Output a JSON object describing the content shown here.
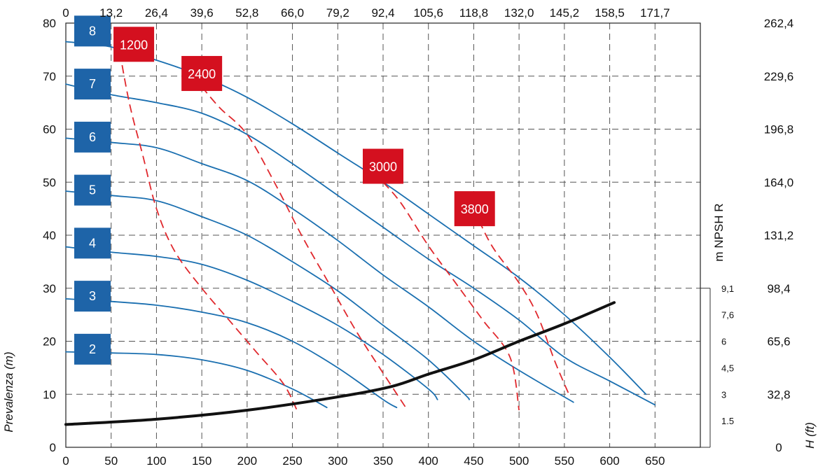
{
  "chart_data": {
    "type": "line",
    "x_bottom": {
      "ticks": [
        "0",
        "50",
        "100",
        "150",
        "200",
        "250",
        "300",
        "350",
        "400",
        "450",
        "500",
        "550",
        "600",
        "650"
      ],
      "range": [
        0,
        700
      ]
    },
    "x_top": {
      "ticks": [
        "0",
        "13,2",
        "26,4",
        "39,6",
        "52,8",
        "66,0",
        "79,2",
        "92,4",
        "105,6",
        "118,8",
        "132,0",
        "145,2",
        "158,5",
        "171,7"
      ]
    },
    "y_left": {
      "label": "Prevalenza (m)",
      "ticks": [
        "0",
        "10",
        "20",
        "30",
        "40",
        "50",
        "60",
        "70",
        "80"
      ],
      "range": [
        0,
        80
      ]
    },
    "y_right_ft": {
      "label": "H (ft)",
      "ticks": [
        "0",
        "32,8",
        "65,6",
        "98,4",
        "131,2",
        "164,0",
        "196,8",
        "229,6",
        "262,4"
      ]
    },
    "y_npsh": {
      "label": "m NPSH R",
      "ticks": [
        {
          "text": "1.5",
          "y": 5
        },
        {
          "text": "3",
          "y": 10
        },
        {
          "text": "4,5",
          "y": 15
        },
        {
          "text": "6",
          "y": 20
        },
        {
          "text": "7,6",
          "y": 25
        },
        {
          "text": "9,1",
          "y": 30
        }
      ]
    },
    "grid": true,
    "series": [
      {
        "name": "2",
        "color": "#1a6fb0",
        "points": [
          [
            0,
            18
          ],
          [
            50,
            17.8
          ],
          [
            100,
            17.5
          ],
          [
            150,
            16.5
          ],
          [
            200,
            14.5
          ],
          [
            250,
            11
          ],
          [
            288,
            7.5
          ]
        ]
      },
      {
        "name": "3",
        "color": "#1a6fb0",
        "points": [
          [
            0,
            28
          ],
          [
            50,
            27.5
          ],
          [
            100,
            26.8
          ],
          [
            150,
            25.5
          ],
          [
            200,
            23.5
          ],
          [
            250,
            20
          ],
          [
            300,
            15
          ],
          [
            350,
            9
          ],
          [
            365,
            7.5
          ]
        ]
      },
      {
        "name": "4",
        "color": "#1a6fb0",
        "points": [
          [
            0,
            37.8
          ],
          [
            50,
            36.8
          ],
          [
            100,
            36
          ],
          [
            150,
            34.5
          ],
          [
            200,
            31.5
          ],
          [
            250,
            27.5
          ],
          [
            300,
            23
          ],
          [
            350,
            17.5
          ],
          [
            400,
            11
          ],
          [
            410,
            9
          ]
        ]
      },
      {
        "name": "5",
        "color": "#1a6fb0",
        "points": [
          [
            0,
            48.3
          ],
          [
            50,
            47.5
          ],
          [
            100,
            46.5
          ],
          [
            150,
            43.5
          ],
          [
            200,
            40
          ],
          [
            250,
            35
          ],
          [
            300,
            29.5
          ],
          [
            350,
            23
          ],
          [
            400,
            16.5
          ],
          [
            440,
            10
          ],
          [
            445,
            9
          ]
        ]
      },
      {
        "name": "6",
        "color": "#1a6fb0",
        "points": [
          [
            0,
            58.3
          ],
          [
            50,
            57.5
          ],
          [
            100,
            56.5
          ],
          [
            150,
            53.5
          ],
          [
            200,
            50.3
          ],
          [
            250,
            45
          ],
          [
            300,
            39
          ],
          [
            350,
            32.5
          ],
          [
            400,
            26.5
          ],
          [
            450,
            20
          ],
          [
            500,
            14.5
          ],
          [
            560,
            8.5
          ]
        ]
      },
      {
        "name": "7",
        "color": "#1a6fb0",
        "points": [
          [
            0,
            68.5
          ],
          [
            50,
            66.5
          ],
          [
            100,
            65
          ],
          [
            150,
            63
          ],
          [
            200,
            59
          ],
          [
            250,
            53.5
          ],
          [
            300,
            47.5
          ],
          [
            350,
            41.5
          ],
          [
            400,
            35.5
          ],
          [
            450,
            30
          ],
          [
            500,
            24
          ],
          [
            550,
            17
          ],
          [
            600,
            12.5
          ],
          [
            650,
            8
          ]
        ]
      },
      {
        "name": "8",
        "color": "#1a6fb0",
        "points": [
          [
            0,
            76.5
          ],
          [
            50,
            75.5
          ],
          [
            100,
            73
          ],
          [
            150,
            70
          ],
          [
            200,
            66
          ],
          [
            250,
            61
          ],
          [
            300,
            55.5
          ],
          [
            350,
            50
          ],
          [
            400,
            44
          ],
          [
            450,
            38
          ],
          [
            500,
            32
          ],
          [
            550,
            25
          ],
          [
            600,
            17
          ],
          [
            640,
            10
          ]
        ]
      },
      {
        "name": "NPSH",
        "color": "#111111",
        "points": [
          [
            0,
            4.3
          ],
          [
            100,
            5.3
          ],
          [
            200,
            7
          ],
          [
            300,
            9.5
          ],
          [
            360,
            11.5
          ],
          [
            400,
            13.8
          ],
          [
            450,
            16.5
          ],
          [
            500,
            20
          ],
          [
            550,
            23.3
          ],
          [
            605,
            27.3
          ]
        ]
      }
    ],
    "speed_lines": [
      {
        "name": "1200",
        "points": [
          [
            57,
            77
          ],
          [
            70,
            65
          ],
          [
            85,
            55
          ],
          [
            100,
            45
          ],
          [
            120,
            37
          ],
          [
            150,
            30
          ],
          [
            180,
            24
          ],
          [
            210,
            18
          ],
          [
            240,
            12
          ],
          [
            255,
            7
          ]
        ]
      },
      {
        "name": "2400",
        "points": [
          [
            150,
            68
          ],
          [
            170,
            64
          ],
          [
            200,
            59
          ],
          [
            230,
            50
          ],
          [
            260,
            40
          ],
          [
            290,
            31
          ],
          [
            320,
            22
          ],
          [
            350,
            14
          ],
          [
            375,
            7.5
          ]
        ]
      },
      {
        "name": "3000",
        "points": [
          [
            350,
            50
          ],
          [
            370,
            46
          ],
          [
            400,
            38
          ],
          [
            430,
            31
          ],
          [
            460,
            24
          ],
          [
            490,
            17
          ],
          [
            500,
            7
          ]
        ]
      },
      {
        "name": "3800",
        "points": [
          [
            450,
            45
          ],
          [
            470,
            38
          ],
          [
            500,
            31
          ],
          [
            520,
            25
          ],
          [
            540,
            16
          ],
          [
            555,
            10
          ]
        ]
      }
    ],
    "size_labels": [
      {
        "text": "8",
        "y": 78.5
      },
      {
        "text": "7",
        "y": 68.5
      },
      {
        "text": "6",
        "y": 58.5
      },
      {
        "text": "5",
        "y": 48.5
      },
      {
        "text": "4",
        "y": 38.5
      },
      {
        "text": "3",
        "y": 28.5
      },
      {
        "text": "2",
        "y": 18.5
      }
    ],
    "speed_labels": [
      {
        "text": "1200",
        "x": 75,
        "y": 76
      },
      {
        "text": "2400",
        "x": 150,
        "y": 70.5
      },
      {
        "text": "3000",
        "x": 350,
        "y": 53
      },
      {
        "text": "3800",
        "x": 451,
        "y": 45
      }
    ],
    "colors": {
      "size_badge": "#1e64a8",
      "speed_badge": "#d4101f",
      "speed_line": "#e0282d",
      "curve": "#1a6fb0",
      "npsh": "#111111"
    }
  }
}
